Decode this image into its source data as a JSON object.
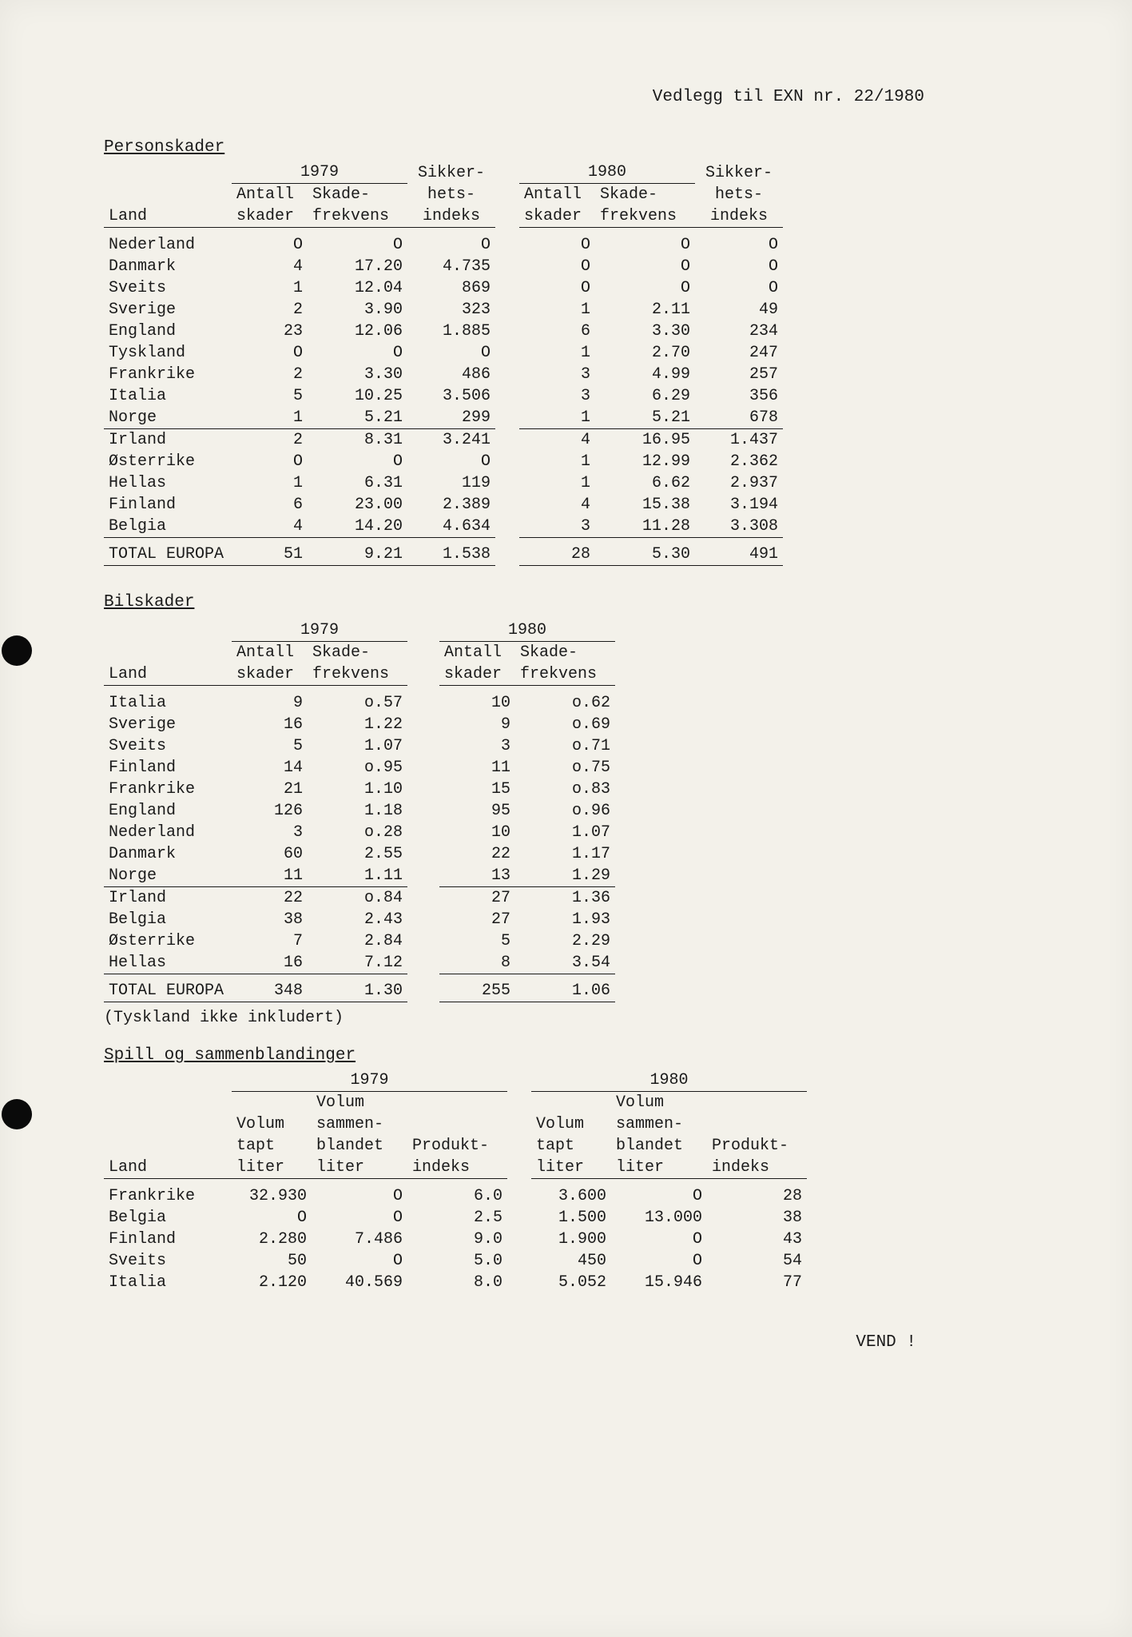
{
  "header": "Vedlegg til EXN nr. 22/1980",
  "t1": {
    "title": "Personskader",
    "year1": "1979",
    "year2": "1980",
    "h_land": "Land",
    "h_antall": "Antall\nskader",
    "h_skade": "Skade-\nfrekvens",
    "h_sikker": "Sikker-\nhets-\nindeks",
    "cols": [
      "Land",
      "Antall skader",
      "Skade-frekvens",
      "Sikkerhetsindeks",
      "Antall skader",
      "Skade-frekvens",
      "Sikkerhetsindeks"
    ],
    "rows_a": [
      [
        "Nederland",
        "O",
        "O",
        "O",
        "O",
        "O",
        "O"
      ],
      [
        "Danmark",
        "4",
        "17.20",
        "4.735",
        "O",
        "O",
        "O"
      ],
      [
        "Sveits",
        "1",
        "12.04",
        "869",
        "O",
        "O",
        "O"
      ],
      [
        "Sverige",
        "2",
        "3.90",
        "323",
        "1",
        "2.11",
        "49"
      ],
      [
        "England",
        "23",
        "12.06",
        "1.885",
        "6",
        "3.30",
        "234"
      ],
      [
        "Tyskland",
        "O",
        "O",
        "O",
        "1",
        "2.70",
        "247"
      ],
      [
        "Frankrike",
        "2",
        "3.30",
        "486",
        "3",
        "4.99",
        "257"
      ],
      [
        "Italia",
        "5",
        "10.25",
        "3.506",
        "3",
        "6.29",
        "356"
      ],
      [
        "Norge",
        "1",
        "5.21",
        "299",
        "1",
        "5.21",
        "678"
      ]
    ],
    "rows_b": [
      [
        "Irland",
        "2",
        "8.31",
        "3.241",
        "4",
        "16.95",
        "1.437"
      ],
      [
        "Østerrike",
        "O",
        "O",
        "O",
        "1",
        "12.99",
        "2.362"
      ],
      [
        "Hellas",
        "1",
        "6.31",
        "119",
        "1",
        "6.62",
        "2.937"
      ],
      [
        "Finland",
        "6",
        "23.00",
        "2.389",
        "4",
        "15.38",
        "3.194"
      ],
      [
        "Belgia",
        "4",
        "14.20",
        "4.634",
        "3",
        "11.28",
        "3.308"
      ]
    ],
    "total": [
      "TOTAL EUROPA",
      "51",
      "9.21",
      "1.538",
      "28",
      "5.30",
      "491"
    ]
  },
  "t2": {
    "title": "Bilskader",
    "year1": "1979",
    "year2": "1980",
    "h_land": "Land",
    "h_antall": "Antall\nskader",
    "h_skade": "Skade-\nfrekvens",
    "rows_a": [
      [
        "Italia",
        "9",
        "o.57",
        "10",
        "o.62"
      ],
      [
        "Sverige",
        "16",
        "1.22",
        "9",
        "o.69"
      ],
      [
        "Sveits",
        "5",
        "1.07",
        "3",
        "o.71"
      ],
      [
        "Finland",
        "14",
        "o.95",
        "11",
        "o.75"
      ],
      [
        "Frankrike",
        "21",
        "1.10",
        "15",
        "o.83"
      ],
      [
        "England",
        "126",
        "1.18",
        "95",
        "o.96"
      ],
      [
        "Nederland",
        "3",
        "o.28",
        "10",
        "1.07"
      ],
      [
        "Danmark",
        "60",
        "2.55",
        "22",
        "1.17"
      ],
      [
        "Norge",
        "11",
        "1.11",
        "13",
        "1.29"
      ]
    ],
    "rows_b": [
      [
        "Irland",
        "22",
        "o.84",
        "27",
        "1.36"
      ],
      [
        "Belgia",
        "38",
        "2.43",
        "27",
        "1.93"
      ],
      [
        "Østerrike",
        "7",
        "2.84",
        "5",
        "2.29"
      ],
      [
        "Hellas",
        "16",
        "7.12",
        "8",
        "3.54"
      ]
    ],
    "total": [
      "TOTAL EUROPA",
      "348",
      "1.30",
      "255",
      "1.06"
    ],
    "note": "(Tyskland ikke inkludert)"
  },
  "t3": {
    "title": "Spill og sammenblandinger",
    "year1": "1979",
    "year2": "1980",
    "h_land": "Land",
    "h_vol_tapt": "Volum\ntapt\nliter",
    "h_vol_sam": "Volum\nsammen-\nblandet\nliter",
    "h_prod": "Produkt-\nindeks",
    "rows": [
      [
        "Frankrike",
        "32.930",
        "O",
        "6.0",
        "3.600",
        "O",
        "28"
      ],
      [
        "Belgia",
        "O",
        "O",
        "2.5",
        "1.500",
        "13.000",
        "38"
      ],
      [
        "Finland",
        "2.280",
        "7.486",
        "9.0",
        "1.900",
        "O",
        "43"
      ],
      [
        "Sveits",
        "50",
        "O",
        "5.0",
        "450",
        "O",
        "54"
      ],
      [
        "Italia",
        "2.120",
        "40.569",
        "8.0",
        "5.052",
        "15.946",
        "77"
      ]
    ]
  },
  "vend": "VEND !"
}
